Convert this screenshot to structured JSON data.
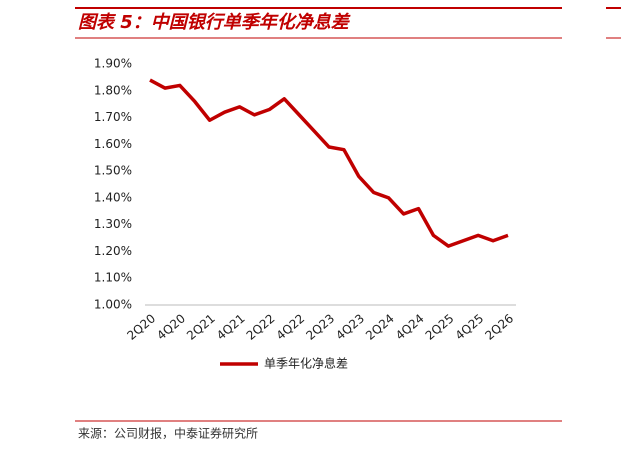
{
  "chart_data": {
    "type": "line",
    "title": "图表 5：中国银行单季年化净息差",
    "source": "来源：公司财报，中泰证券研究所",
    "categories": [
      "2Q20",
      null,
      "4Q20",
      null,
      "2Q21",
      null,
      "4Q21",
      null,
      "2Q22",
      null,
      "4Q22",
      null,
      "2Q23",
      null,
      "4Q23",
      null,
      "2Q24",
      null,
      "4Q24",
      null,
      "2Q25",
      null,
      "4Q25",
      null,
      "2Q26"
    ],
    "series": [
      {
        "name": "单季年化净息差",
        "color": "#c00000",
        "values": [
          1.84,
          1.81,
          1.82,
          1.76,
          1.69,
          1.72,
          1.74,
          1.71,
          1.73,
          1.77,
          1.71,
          1.65,
          1.59,
          1.58,
          1.48,
          1.42,
          1.4,
          1.34,
          1.36,
          1.26,
          1.22,
          1.24,
          1.26,
          1.24,
          1.26
        ]
      }
    ],
    "ylim": [
      1.0,
      1.9
    ],
    "yticks": [
      {
        "value": 1.9,
        "label": "1.90%"
      },
      {
        "value": 1.8,
        "label": "1.80%"
      },
      {
        "value": 1.7,
        "label": "1.70%"
      },
      {
        "value": 1.6,
        "label": "1.60%"
      },
      {
        "value": 1.5,
        "label": "1.50%"
      },
      {
        "value": 1.4,
        "label": "1.40%"
      },
      {
        "value": 1.3,
        "label": "1.30%"
      },
      {
        "value": 1.2,
        "label": "1.20%"
      },
      {
        "value": 1.1,
        "label": "1.10%"
      },
      {
        "value": 1.0,
        "label": "1.00%"
      }
    ],
    "grid": false
  }
}
